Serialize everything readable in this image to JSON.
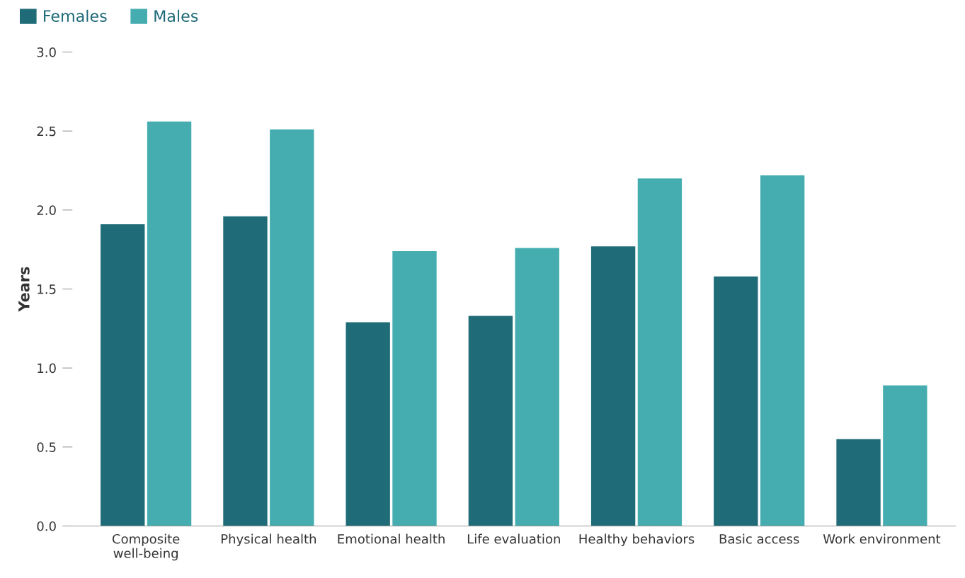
{
  "chart_data": {
    "type": "bar",
    "ylabel": "Years",
    "categories": [
      "Composite\nwell-being",
      "Physical health",
      "Emotional health",
      "Life evaluation",
      "Healthy behaviors",
      "Basic access",
      "Work environment"
    ],
    "series": [
      {
        "name": "Females",
        "color": "#1f6b78",
        "values": [
          1.91,
          1.96,
          1.29,
          1.33,
          1.77,
          1.58,
          0.55
        ]
      },
      {
        "name": "Males",
        "color": "#45adb0",
        "values": [
          2.56,
          2.51,
          1.74,
          1.76,
          2.2,
          2.22,
          0.89
        ]
      }
    ],
    "ylim": [
      0,
      3
    ],
    "yticks": [
      {
        "value": 0,
        "label": "0.0"
      },
      {
        "value": 0.5,
        "label": "0.5"
      },
      {
        "value": 1,
        "label": "1.0"
      },
      {
        "value": 1.5,
        "label": "1.5"
      },
      {
        "value": 2,
        "label": "2.0"
      },
      {
        "value": 2.5,
        "label": "2.5"
      },
      {
        "value": 3,
        "label": "3.0"
      }
    ],
    "grid": false,
    "legend": "top left"
  }
}
